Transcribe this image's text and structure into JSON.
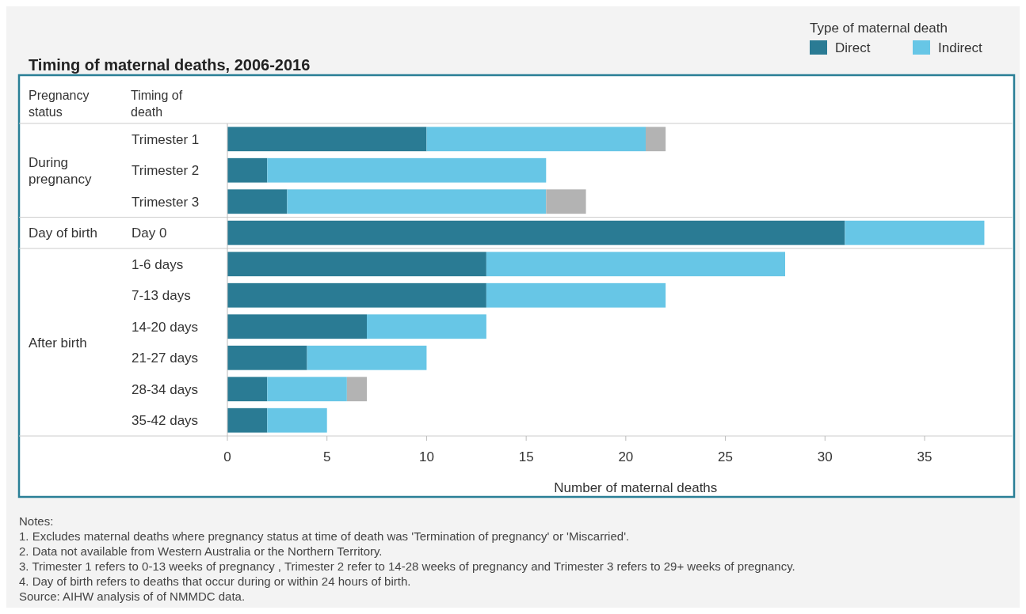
{
  "chart_data": {
    "type": "bar",
    "orientation": "horizontal",
    "stacked": true,
    "title": "Timing of maternal deaths, 2006-2016",
    "xlabel": "Number of maternal deaths",
    "legend_title": "Type of maternal death",
    "legend": "top right",
    "grid": false,
    "categories": [
      "Trimester 1",
      "Trimester 2",
      "Trimester 3",
      "Day 0",
      "1-6 days",
      "7-13 days",
      "14-20 days",
      "21-27 days",
      "28-34 days",
      "35-42 days"
    ],
    "series": [
      {
        "name": "Direct",
        "color": "#2a7b94",
        "values": [
          10,
          2,
          3,
          31,
          13,
          13,
          7,
          4,
          2,
          2
        ]
      },
      {
        "name": "Indirect",
        "color": "#67c6e6",
        "values": [
          11,
          14,
          13,
          7,
          15,
          9,
          6,
          6,
          4,
          3
        ]
      },
      {
        "color": "#b3b3b3",
        "values": [
          1,
          null,
          2,
          null,
          null,
          null,
          null,
          null,
          1,
          null
        ]
      }
    ],
    "xlim": [
      0,
      39.4
    ],
    "xticks": [
      0,
      5,
      10,
      15,
      20,
      25,
      30,
      35
    ],
    "annotations": [
      "Pregnancy status",
      "Timing of death",
      "During pregnancy",
      "Day of birth",
      "After birth",
      "Notes:",
      "1.    Excludes maternal deaths where pregnancy status at time of death was 'Termination of pregnancy' or 'Miscarried'.",
      "2.    Data not available from Western Australia or the Northern Territory.",
      "3.    Trimester 1 refers to 0-13 weeks of pregnancy , Trimester 2 refer to  14-28 weeks of pregnancy and Trimester 3 refers to  29+ weeks of pregnancy.",
      "4.    Day of birth refers to deaths that occur during or within 24 hours of birth.",
      "Source: AIHW analysis of of NMMDC data."
    ]
  }
}
